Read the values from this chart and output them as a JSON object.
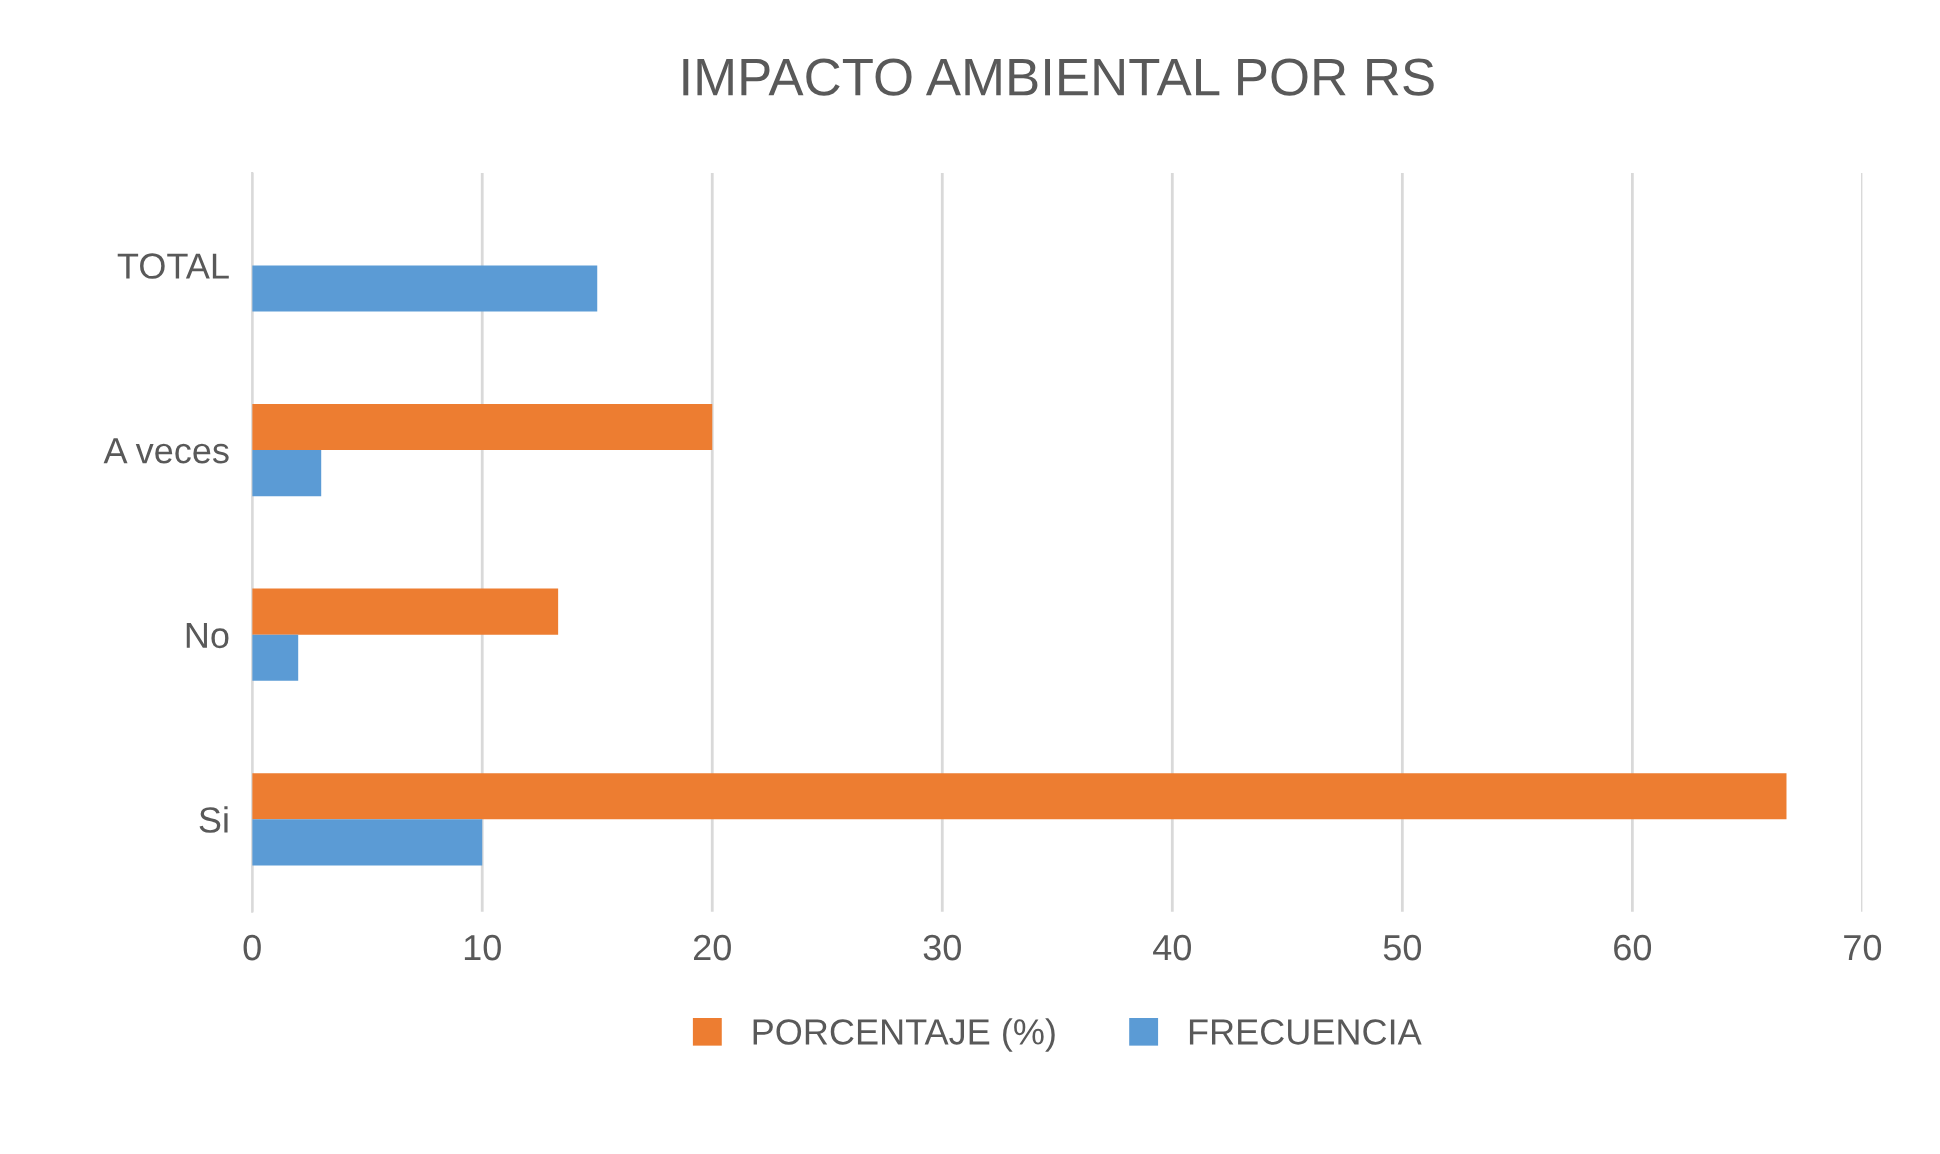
{
  "chart_data": {
    "type": "bar",
    "orientation": "horizontal",
    "title": "IMPACTO AMBIENTAL POR RS",
    "categories": [
      "TOTAL",
      "A veces",
      "No",
      "Si"
    ],
    "series": [
      {
        "name": "PORCENTAJE (%)",
        "color": "#ed7d31",
        "values": [
          null,
          20,
          13.3,
          66.7
        ]
      },
      {
        "name": "FRECUENCIA",
        "color": "#5b9bd5",
        "values": [
          15,
          3,
          2,
          10
        ]
      }
    ],
    "xlim": [
      0,
      70
    ],
    "xticks": [
      0,
      10,
      20,
      30,
      40,
      50,
      60,
      70
    ],
    "grid": "x",
    "legend": "bottom"
  }
}
